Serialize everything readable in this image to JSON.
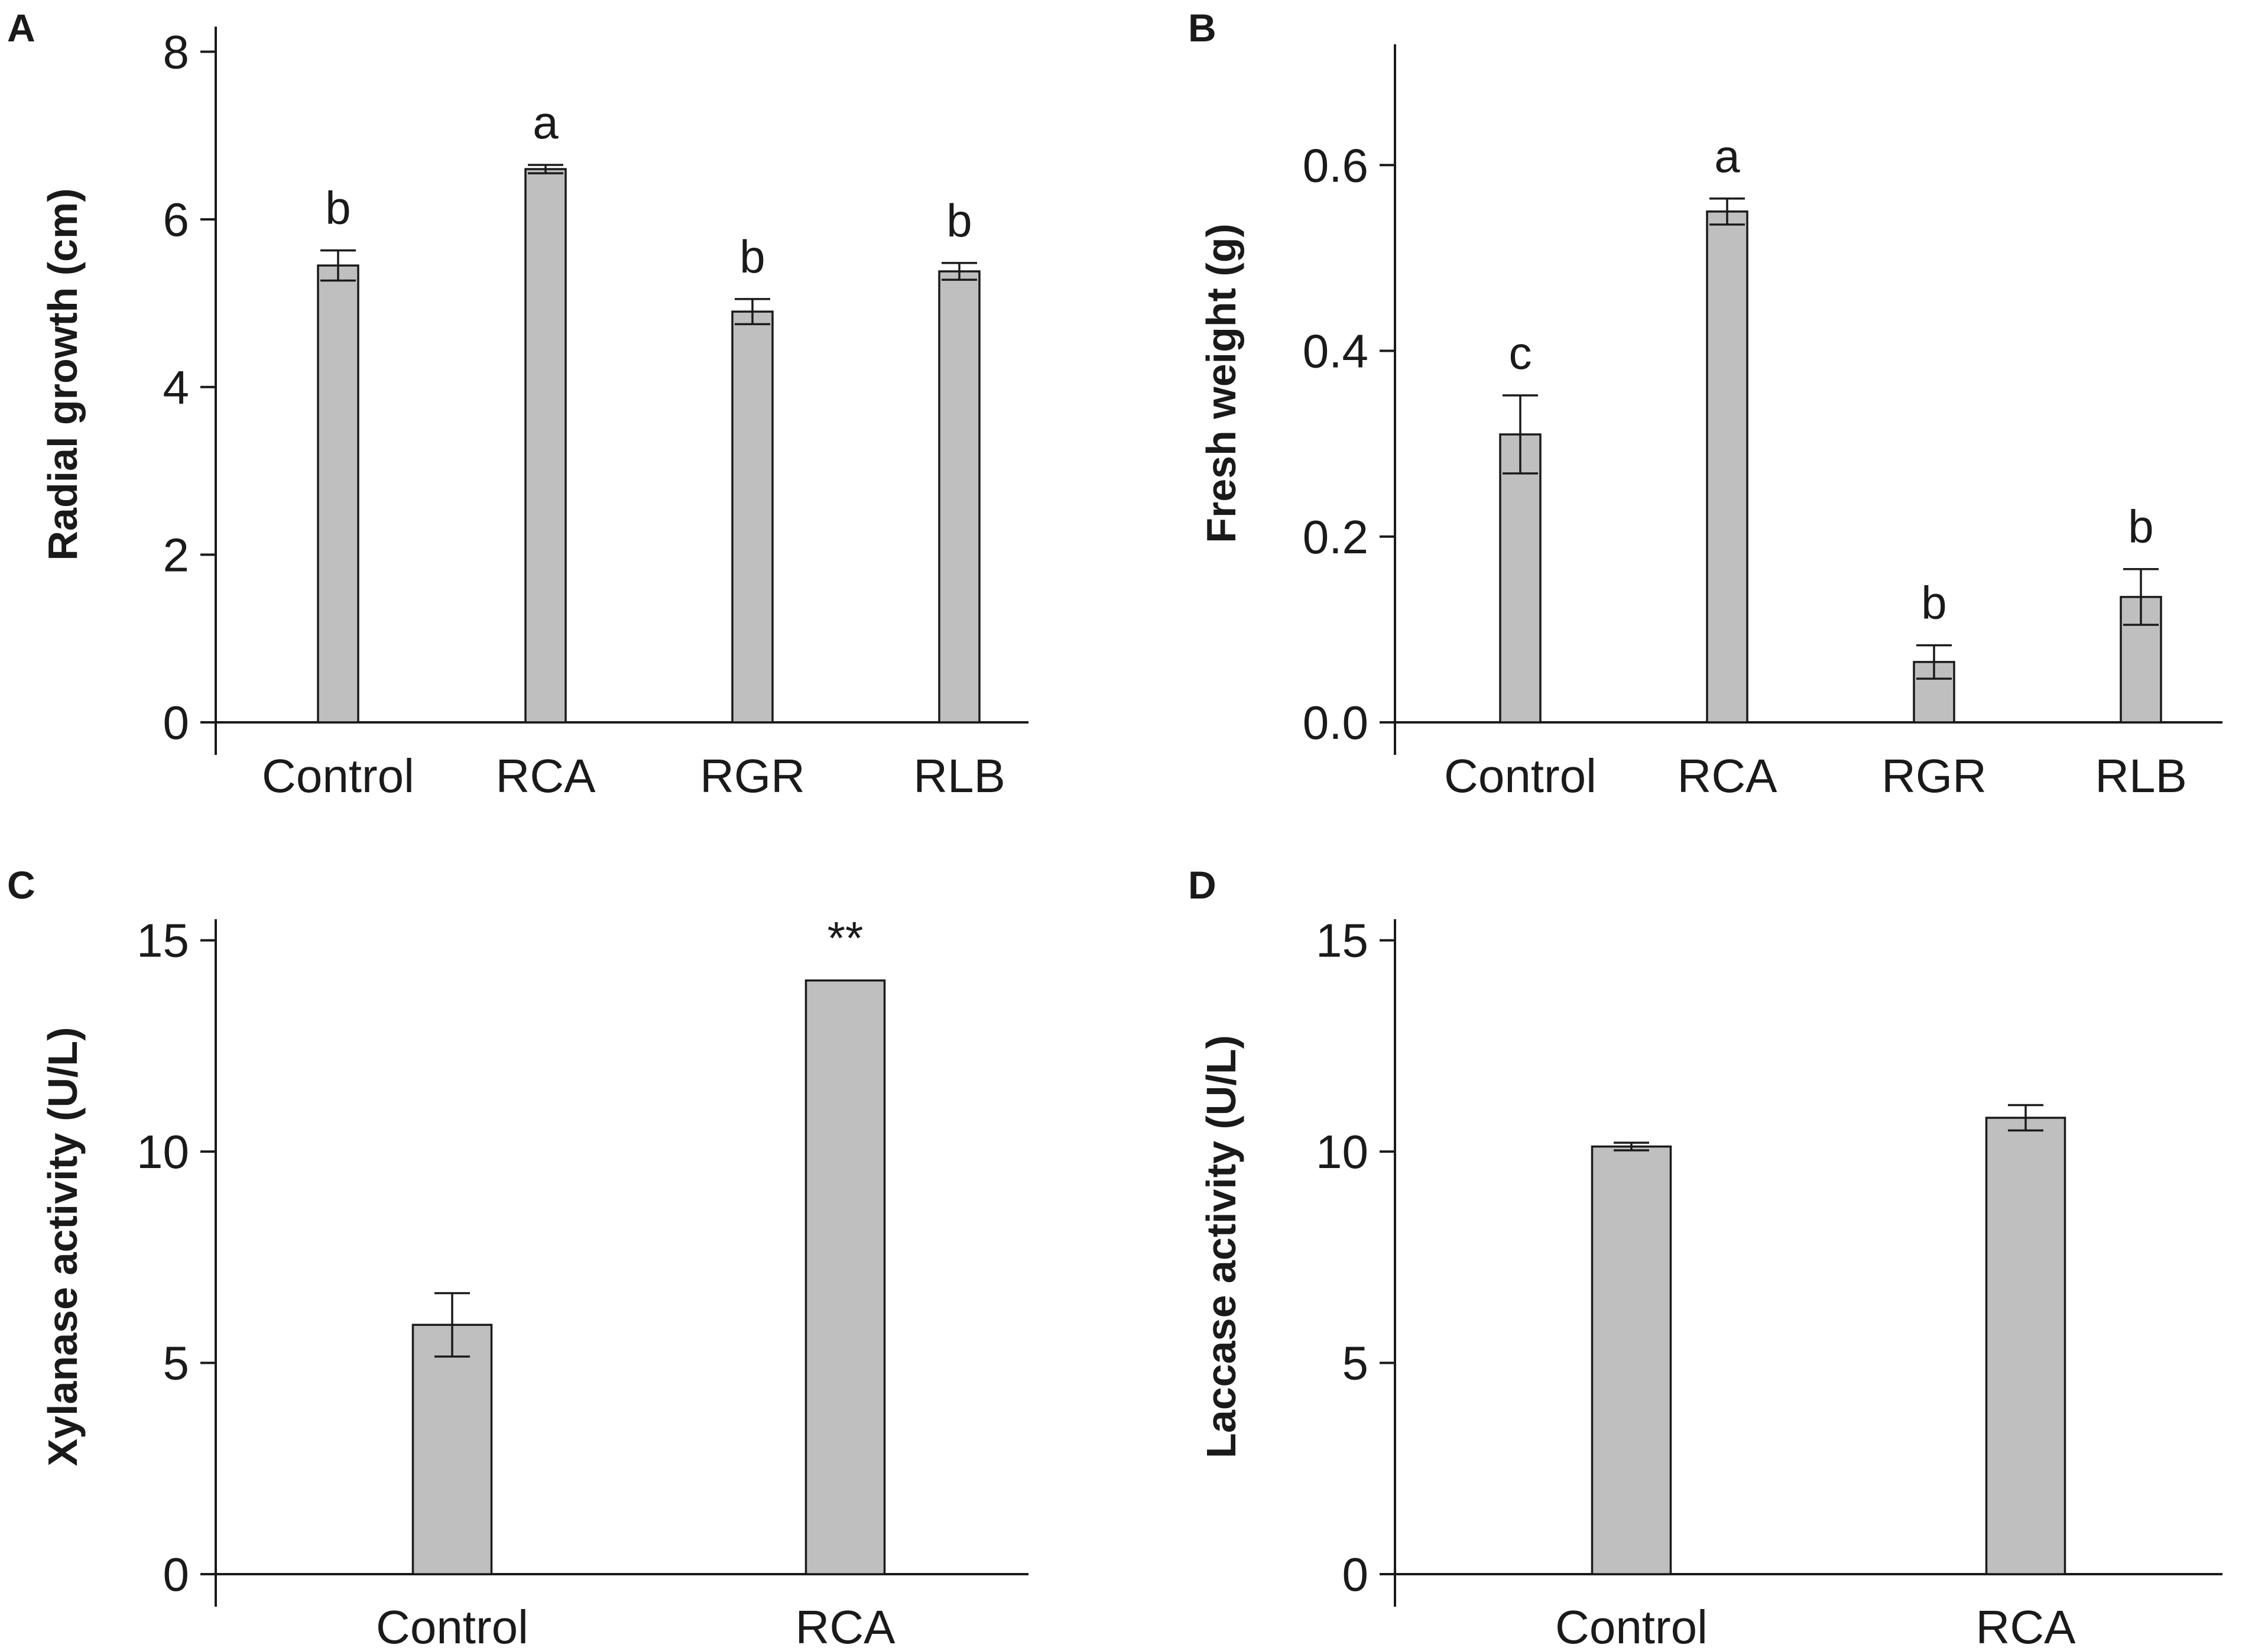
{
  "chart_data": [
    {
      "panel": "A",
      "type": "bar",
      "categories": [
        "Control",
        "RCA",
        "RGR",
        "RLB"
      ],
      "values": [
        5.45,
        6.6,
        4.9,
        5.38
      ],
      "errors": [
        0.18,
        0.05,
        0.15,
        0.1
      ],
      "significance": [
        "b",
        "a",
        "b",
        "b"
      ],
      "ylabel": "Radial growth (cm)",
      "xlabel": "",
      "ylim": [
        0,
        8.3
      ],
      "yticks": [
        0,
        2,
        4,
        6,
        8
      ],
      "tick_decimals": 0
    },
    {
      "panel": "B",
      "type": "bar",
      "categories": [
        "Control",
        "RCA",
        "RGR",
        "RLB"
      ],
      "values": [
        0.31,
        0.55,
        0.065,
        0.135
      ],
      "errors": [
        0.042,
        0.014,
        0.018,
        0.03
      ],
      "significance": [
        "c",
        "a",
        "b",
        "b"
      ],
      "ylabel": "Fresh weight (g)",
      "xlabel": "",
      "ylim": [
        0,
        0.73
      ],
      "yticks": [
        0.0,
        0.2,
        0.4,
        0.6
      ],
      "tick_decimals": 1
    },
    {
      "panel": "C",
      "type": "bar",
      "categories": [
        "Control",
        "RCA"
      ],
      "values": [
        5.9,
        14.05
      ],
      "errors": [
        0.75,
        0
      ],
      "significance": [
        "",
        "**"
      ],
      "ylabel": "Xylanase activity (U/L)",
      "xlabel": "",
      "ylim": [
        0,
        15.5
      ],
      "yticks": [
        0,
        5,
        10,
        15
      ],
      "tick_decimals": 0
    },
    {
      "panel": "D",
      "type": "bar",
      "categories": [
        "Control",
        "RCA"
      ],
      "values": [
        10.12,
        10.8
      ],
      "errors": [
        0.09,
        0.3
      ],
      "significance": [
        "",
        ""
      ],
      "ylabel": "Laccase activity (U/L)",
      "xlabel": "",
      "ylim": [
        0,
        15.5
      ],
      "yticks": [
        0,
        5,
        10,
        15
      ],
      "tick_decimals": 0
    }
  ]
}
